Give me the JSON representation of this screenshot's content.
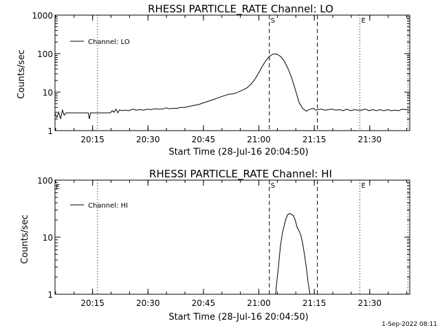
{
  "footer_stamp": "1-Sep-2022 08:11",
  "chart_data": [
    {
      "type": "line",
      "title": "RHESSI PARTICLE_RATE Channel: LO",
      "xlabel": "Start Time (28-Jul-16 20:04:50)",
      "ylabel": "Counts/sec",
      "y_scale": "log",
      "ylim": [
        1,
        1000
      ],
      "y_ticks": [
        "1",
        "10",
        "100",
        "1000"
      ],
      "x_tick_labels": [
        "20:15",
        "20:30",
        "20:45",
        "21:00",
        "21:15",
        "21:30"
      ],
      "x_tick_minutes": [
        10.17,
        25.17,
        40.17,
        55.17,
        70.17,
        85.17
      ],
      "xlim_minutes": [
        0,
        96
      ],
      "legend": "top-left",
      "series": [
        {
          "name": "Channel: LO",
          "x_minutes": [
            0,
            0.5,
            1,
            1.5,
            2,
            2.5,
            3,
            4,
            6,
            8,
            9,
            9.3,
            9.6,
            10,
            12,
            14,
            15,
            15.5,
            16,
            16.5,
            17,
            17.5,
            18,
            19,
            20,
            21,
            22,
            23,
            24,
            25,
            26,
            27,
            28,
            29,
            30,
            31,
            32,
            33,
            34,
            35,
            36,
            37,
            38,
            39,
            40,
            41,
            42,
            43,
            44,
            45,
            46,
            47,
            48,
            49,
            50,
            51,
            52,
            53,
            54,
            55,
            56,
            57,
            58,
            59,
            60,
            61,
            62,
            63,
            64,
            65,
            66,
            67,
            68,
            69,
            70,
            70.5,
            71,
            72,
            73,
            74,
            75,
            76,
            77,
            78,
            79,
            80,
            81,
            82,
            83,
            84,
            85,
            86,
            87,
            88,
            89,
            90,
            91,
            92,
            93,
            94,
            95,
            96
          ],
          "y": [
            2.8,
            2.2,
            3.0,
            2.0,
            3.4,
            2.5,
            2.9,
            2.9,
            2.9,
            2.9,
            2.9,
            2.0,
            2.9,
            2.9,
            2.9,
            2.9,
            2.9,
            3.3,
            3.0,
            3.6,
            2.9,
            3.5,
            3.3,
            3.4,
            3.3,
            3.6,
            3.4,
            3.5,
            3.4,
            3.6,
            3.5,
            3.7,
            3.6,
            3.6,
            3.9,
            3.7,
            3.8,
            3.8,
            4.0,
            4.0,
            4.2,
            4.4,
            4.6,
            4.8,
            5.2,
            5.6,
            6.0,
            6.5,
            7.0,
            7.6,
            8.2,
            8.8,
            9.0,
            9.5,
            10.5,
            11.5,
            13,
            16,
            21,
            30,
            45,
            65,
            85,
            97,
            98,
            85,
            65,
            42,
            24,
            12,
            5.5,
            3.8,
            3.2,
            3.6,
            3.8,
            3.4,
            3.5,
            3.6,
            3.4,
            3.5,
            3.6,
            3.4,
            3.5,
            3.3,
            3.6,
            3.3,
            3.5,
            3.4,
            3.4,
            3.6,
            3.3,
            3.5,
            3.3,
            3.5,
            3.3,
            3.5,
            3.3,
            3.4,
            3.3,
            3.6,
            3.5,
            3.4
          ]
        }
      ],
      "markers": [
        {
          "type": "dotted",
          "minute": 11.5
        },
        {
          "type": "dashed",
          "minute": 58,
          "label": "S"
        },
        {
          "type": "dashed",
          "minute": 71
        },
        {
          "type": "dotted",
          "minute": 82.5,
          "label": "E"
        },
        {
          "type": "dotted",
          "minute": 95.5
        }
      ],
      "corner_mark": ""
    },
    {
      "type": "line",
      "title": "RHESSI PARTICLE_RATE Channel: HI",
      "xlabel": "Start Time (28-Jul-16 20:04:50)",
      "ylabel": "Counts/sec",
      "y_scale": "log",
      "ylim": [
        1,
        100
      ],
      "y_ticks": [
        "1",
        "10",
        "100"
      ],
      "x_tick_labels": [
        "20:15",
        "20:30",
        "20:45",
        "21:00",
        "21:15",
        "21:30"
      ],
      "x_tick_minutes": [
        10.17,
        25.17,
        40.17,
        55.17,
        70.17,
        85.17
      ],
      "xlim_minutes": [
        0,
        96
      ],
      "legend": "top-left",
      "series": [
        {
          "name": "Channel: HI",
          "x_minutes": [
            59.7,
            60,
            60.5,
            61,
            61.5,
            62,
            62.5,
            63,
            63.5,
            64,
            64.5,
            65,
            65.5,
            66,
            66.5,
            67,
            67.5,
            68,
            68.5,
            69
          ],
          "y": [
            1,
            1.6,
            3.2,
            7,
            11.5,
            16,
            21,
            25,
            26,
            25,
            24,
            20,
            15,
            13,
            11,
            8,
            5,
            3,
            1.6,
            1
          ],
          "extends_below_axis": true
        }
      ],
      "markers": [
        {
          "type": "dotted",
          "minute": 11.5
        },
        {
          "type": "dashed",
          "minute": 58,
          "label": "S"
        },
        {
          "type": "dashed",
          "minute": 71
        },
        {
          "type": "dotted",
          "minute": 82.5,
          "label": "E"
        },
        {
          "type": "dotted",
          "minute": 95.5
        }
      ],
      "corner_mark": "E"
    }
  ]
}
